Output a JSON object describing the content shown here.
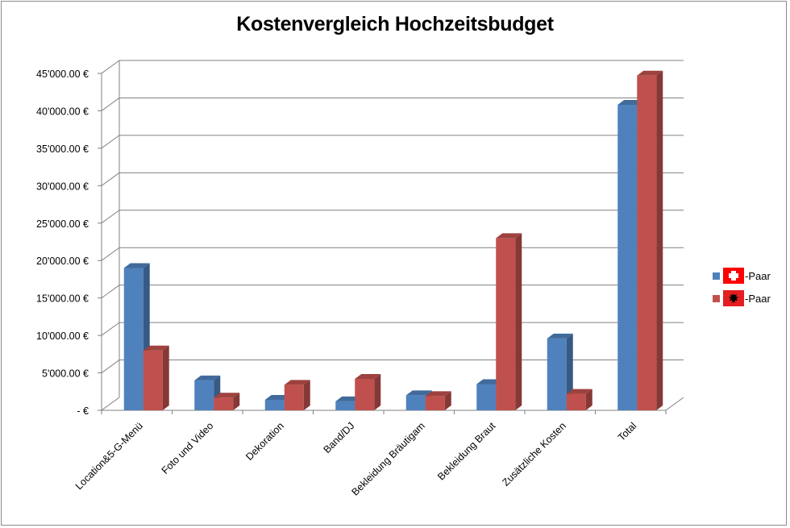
{
  "chart_data": {
    "type": "bar",
    "title": "Kostenvergleich Hochzeitsbudget",
    "xlabel": "",
    "ylabel": "",
    "ylim": [
      0,
      45000
    ],
    "y_ticks": [
      0,
      5000,
      10000,
      15000,
      20000,
      25000,
      30000,
      35000,
      40000,
      45000
    ],
    "y_tick_labels": [
      "-  €",
      "5'000.00 €",
      "10'000.00 €",
      "15'000.00 €",
      "20'000.00 €",
      "25'000.00 €",
      "30'000.00 €",
      "35'000.00 €",
      "40'000.00 €",
      "45'000.00 €"
    ],
    "categories": [
      "Location&5-G-Menü",
      "Foto und Video",
      "Dekoration",
      "Band/DJ",
      "Bekleidung Bräutigam",
      "Bekleidung Braut",
      "Zusätzliche Kosten",
      "Total"
    ],
    "series": [
      {
        "name": "-Paar",
        "flag": "switzerland-flag",
        "color": "#4f81bd",
        "values": [
          19000,
          4000,
          1400,
          1200,
          2000,
          3500,
          9600,
          40800
        ]
      },
      {
        "name": "-Paar",
        "flag": "albania-flag",
        "color": "#c0504d",
        "values": [
          8000,
          1700,
          3400,
          4200,
          1900,
          23000,
          2200,
          44700
        ]
      }
    ],
    "grid": true,
    "legend_position": "right"
  }
}
